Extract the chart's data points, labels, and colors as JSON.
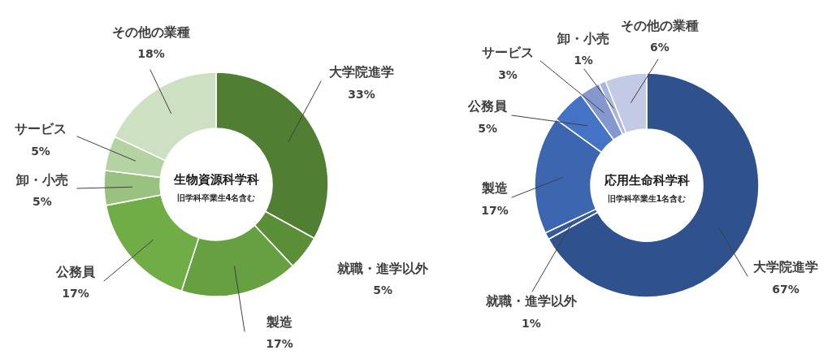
{
  "chart_data": [
    {
      "type": "donut",
      "title": "生物資源科学科",
      "subtitle": "旧学科卒業生4名含む",
      "categories": [
        "大学院進学",
        "就職・進学以外",
        "製造",
        "公務員",
        "卸・小売",
        "サービス",
        "その他の業種"
      ],
      "values": [
        33,
        5,
        17,
        17,
        5,
        5,
        18
      ],
      "colors": [
        "#507e32",
        "#5a8f38",
        "#66a040",
        "#70ad47",
        "#99c281",
        "#b5d3a2",
        "#cde0c2"
      ],
      "value_labels": [
        "33%",
        "5%",
        "17%",
        "17%",
        "5%",
        "5%",
        "18%"
      ],
      "legend": false
    },
    {
      "type": "donut",
      "title": "応用生命科学科",
      "subtitle": "旧学科卒業生1名含む",
      "categories": [
        "大学院進学",
        "就職・進学以外",
        "製造",
        "公務員",
        "サービス",
        "卸・小売",
        "その他の業種"
      ],
      "values": [
        67,
        1,
        17,
        5,
        3,
        1,
        6
      ],
      "colors": [
        "#2f528f",
        "#345a9c",
        "#3c66b0",
        "#4472c4",
        "#8497cf",
        "#a9b5de",
        "#c2cae6"
      ],
      "value_labels": [
        "67%",
        "1%",
        "17%",
        "5%",
        "3%",
        "1%",
        "6%"
      ],
      "legend": false
    }
  ]
}
